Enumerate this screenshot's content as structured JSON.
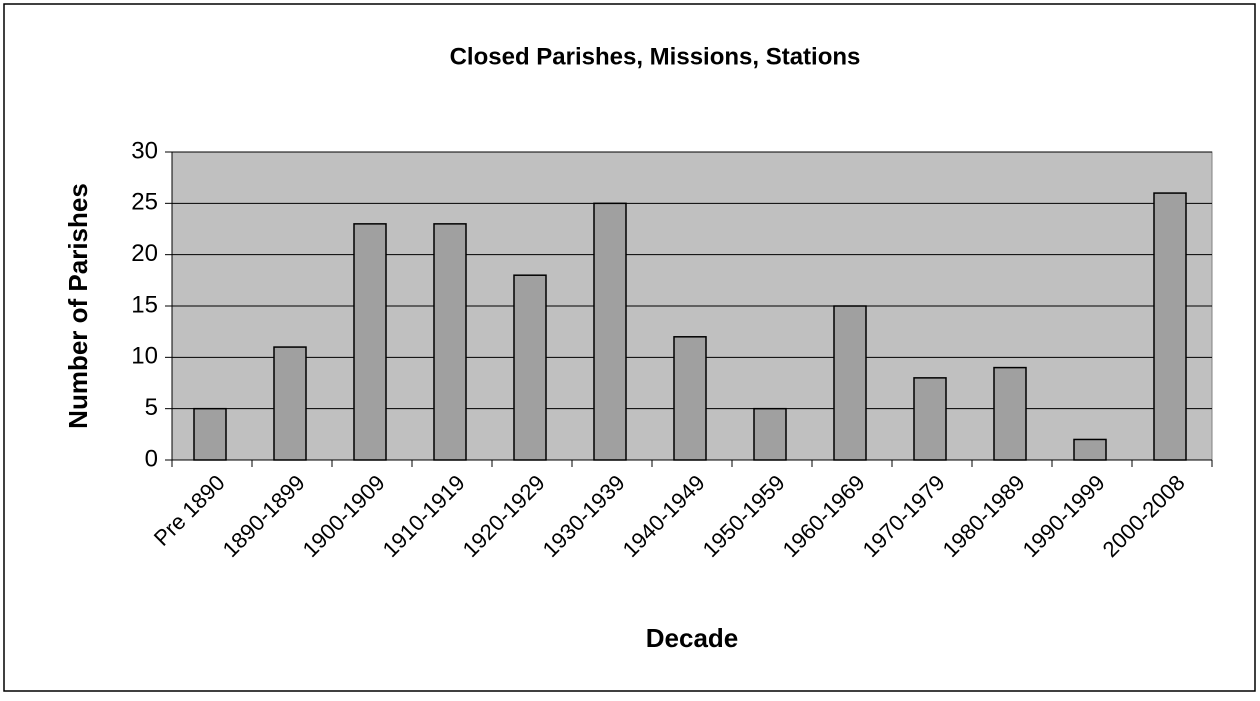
{
  "chart_data": {
    "type": "bar",
    "title": "Closed Parishes, Missions, Stations",
    "x_label": "Decade",
    "y_label": "Number of Parishes",
    "categories": [
      "Pre 1890",
      "1890-1899",
      "1900-1909",
      "1910-1919",
      "1920-1929",
      "1930-1939",
      "1940-1949",
      "1950-1959",
      "1960-1969",
      "1970-1979",
      "1980-1989",
      "1990-1999",
      "2000-2008"
    ],
    "values": [
      5,
      11,
      23,
      23,
      18,
      25,
      12,
      5,
      15,
      8,
      9,
      2,
      26
    ],
    "color": "#a0a0a0",
    "plot_background": "#c0c0c0",
    "ylim": [
      0,
      30
    ],
    "yticks": [
      0,
      5,
      10,
      15,
      20,
      25,
      30
    ],
    "grid": true
  }
}
